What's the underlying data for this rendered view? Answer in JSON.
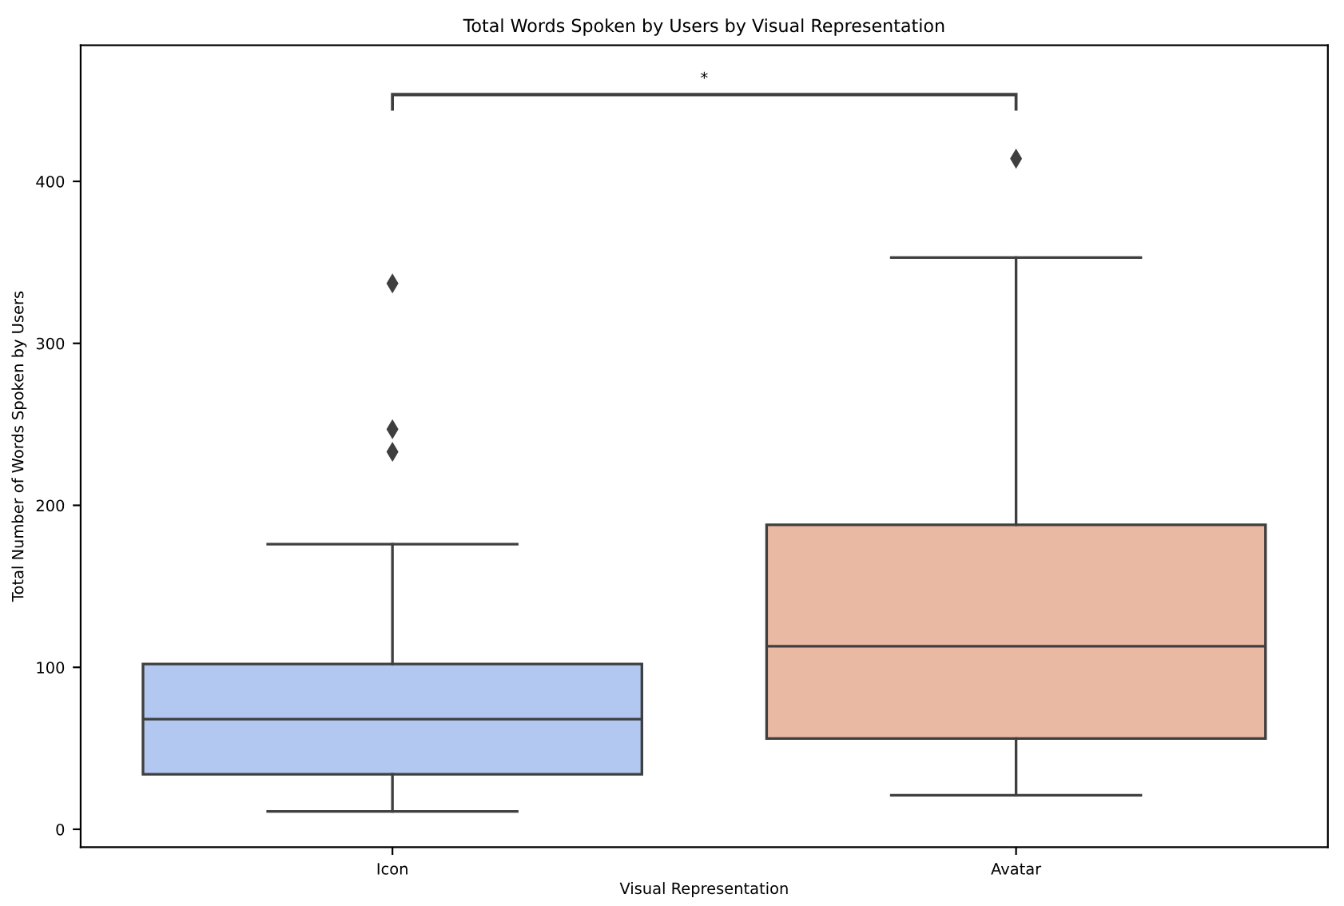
{
  "chart_data": {
    "type": "box",
    "title": "Total Words Spoken by Users by Visual Representation",
    "xlabel": "Visual Representation",
    "ylabel": "Total Number of Words Spoken by Users",
    "categories": [
      "Icon",
      "Avatar"
    ],
    "colors": [
      "#b3c8f1",
      "#eab9a4"
    ],
    "boxes": [
      {
        "low": 11,
        "q1": 34,
        "median": 68,
        "q3": 102,
        "high": 176,
        "outliers": [
          337,
          247,
          233
        ]
      },
      {
        "low": 21,
        "q1": 56,
        "median": 113,
        "q3": 188,
        "high": 353,
        "outliers": [
          414
        ]
      }
    ],
    "ylim": [
      -11,
      484
    ],
    "yticks": [
      0,
      100,
      200,
      300,
      400
    ],
    "annotations": [
      "*"
    ],
    "grid": false
  }
}
